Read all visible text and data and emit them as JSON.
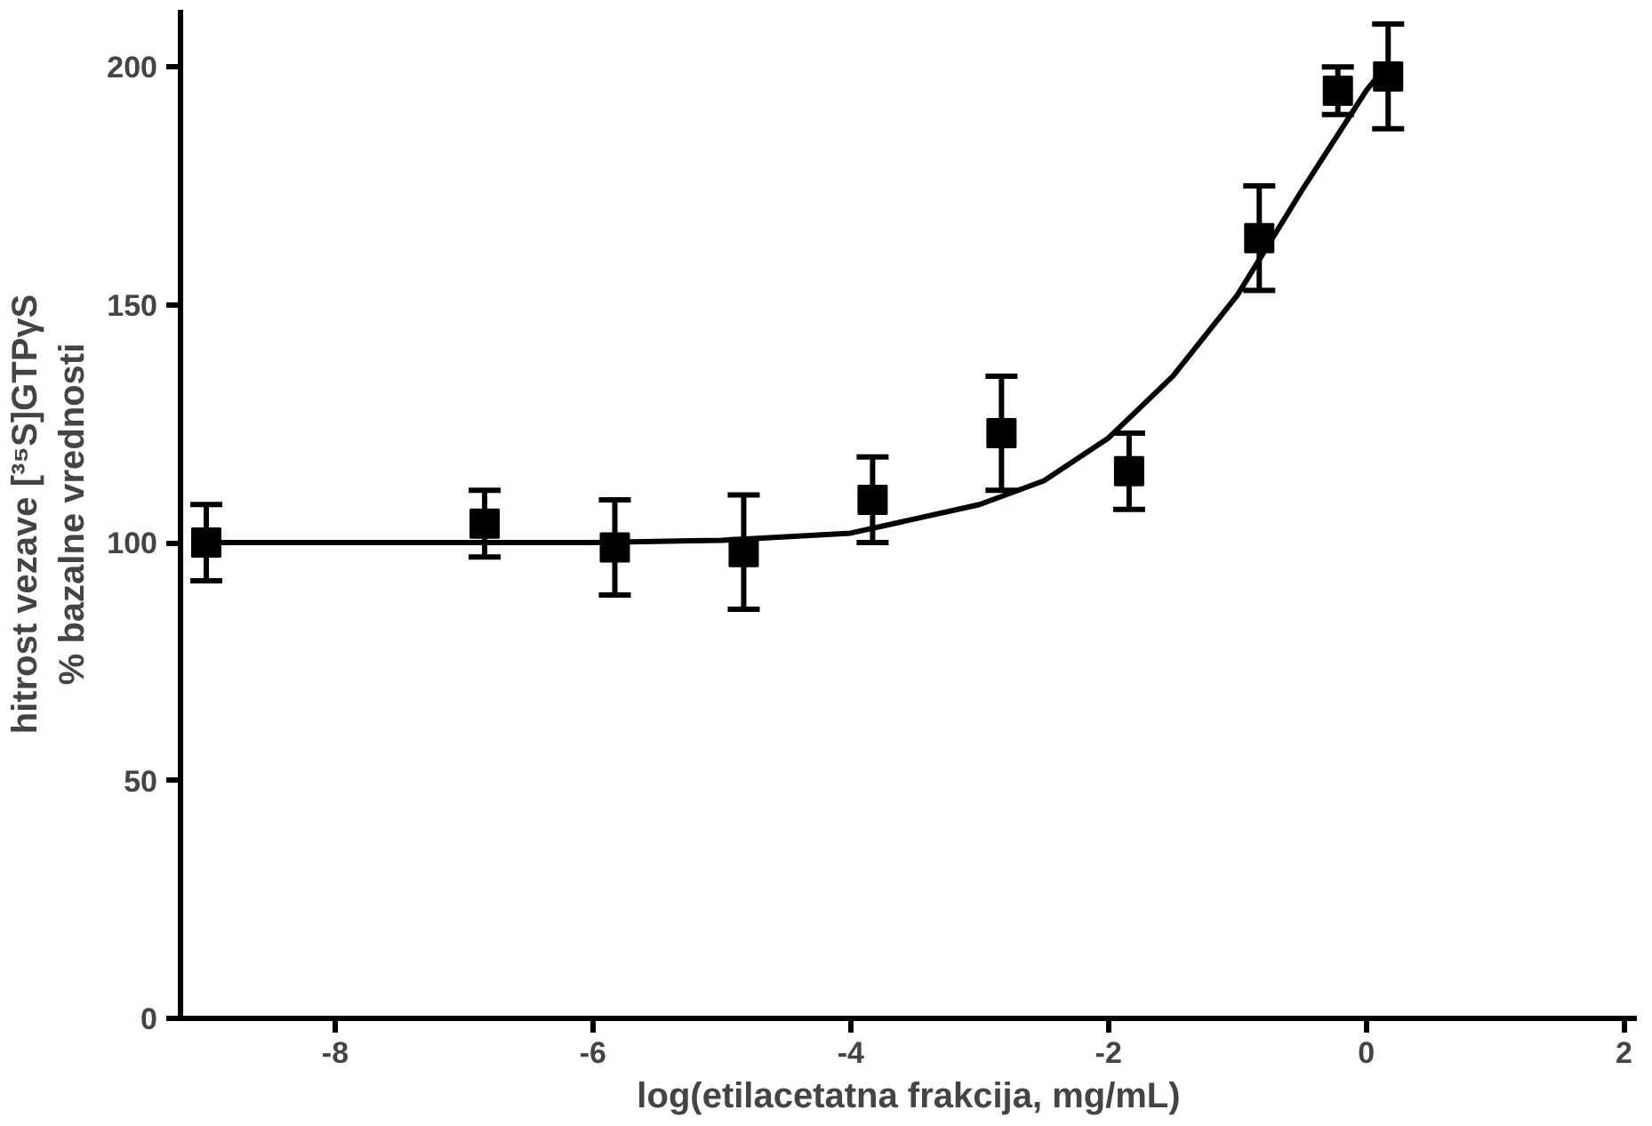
{
  "chart_data": {
    "type": "scatter",
    "xlabel": "log(etilacetatna frakcija, mg/mL)",
    "ylabel": "hitrost vezave [³⁵S]GTPγS\n% bazalne vrednosti",
    "xlim": [
      -9.2,
      2.1
    ],
    "ylim": [
      0,
      212
    ],
    "xticks": [
      -8,
      -6,
      -4,
      -2,
      0,
      2
    ],
    "yticks": [
      0,
      50,
      100,
      150,
      200
    ],
    "grid": false,
    "marker": "square",
    "series": [
      {
        "color": "#000000",
        "x": [
          -9,
          -6.84,
          -5.83,
          -4.83,
          -3.83,
          -2.83,
          -1.84,
          -0.83,
          -0.22,
          0.17
        ],
        "values": [
          100,
          104,
          99,
          98,
          109,
          123,
          115,
          164,
          195,
          198
        ],
        "errors": [
          8,
          7,
          10,
          12,
          9,
          12,
          8,
          11,
          5,
          11
        ]
      },
      {
        "type": "line",
        "color": "#000000",
        "marker": "none",
        "x": [
          -9,
          -6,
          -5,
          -4,
          -3,
          -2.5,
          -2,
          -1.5,
          -1,
          -0.5,
          0,
          0.15
        ],
        "values": [
          100,
          100,
          100.5,
          102,
          108,
          113,
          122,
          135,
          152,
          174,
          195,
          200
        ]
      }
    ]
  }
}
